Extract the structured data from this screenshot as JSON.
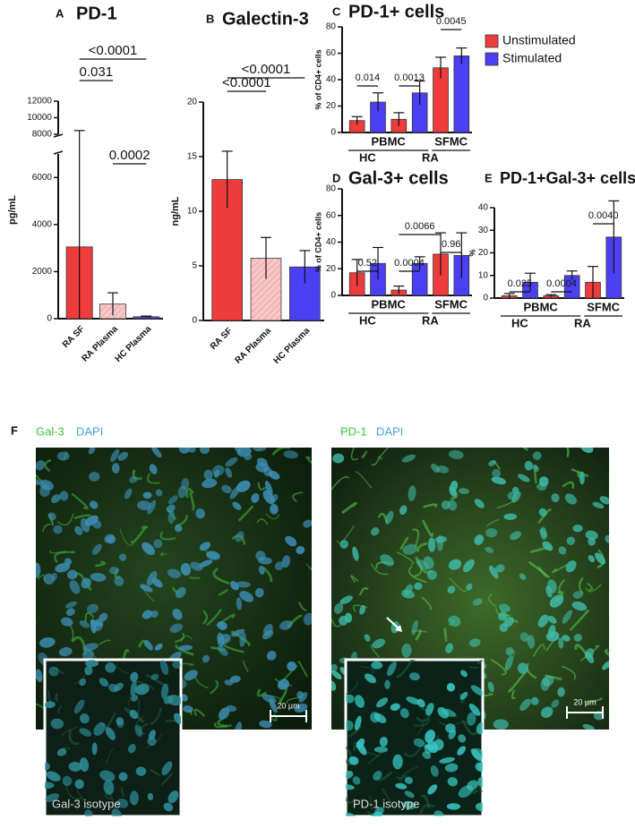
{
  "chart_data": [
    {
      "type": "bar",
      "panel": "A",
      "title": "PD-1",
      "y_label": "pg/mL",
      "categories": [
        "RA SF",
        "RA Plasma",
        "HC Plasma"
      ],
      "values": [
        3050,
        620,
        80
      ],
      "errors": [
        5400,
        480,
        30
      ],
      "colors": [
        "#ee3b3b",
        "#f8c8c8",
        "#4b3ff2"
      ],
      "hatched": [
        false,
        true,
        false
      ],
      "ylim": [
        0,
        12000
      ],
      "axis_break": [
        7000,
        8000
      ],
      "yticks": [
        0,
        2000,
        4000,
        6000,
        8000,
        10000,
        12000
      ],
      "annotations": [
        "<0.0001",
        "0.031",
        "0.0002"
      ],
      "legend": false
    },
    {
      "type": "bar",
      "panel": "B",
      "title": "Galectin-3",
      "y_label": "ng/mL",
      "categories": [
        "RA SF",
        "RA Plasma",
        "HC Plasma"
      ],
      "values": [
        12.9,
        5.7,
        4.9
      ],
      "errors": [
        2.6,
        1.9,
        1.5
      ],
      "colors": [
        "#ee3b3b",
        "#f8c8c8",
        "#4b3ff2"
      ],
      "hatched": [
        false,
        true,
        false
      ],
      "ylim": [
        0,
        20
      ],
      "yticks": [
        0,
        5,
        10,
        15,
        20
      ],
      "annotations": [
        "<0.0001",
        "<0.0001"
      ],
      "legend": false
    },
    {
      "type": "grouped_bar",
      "panel": "C",
      "title": "PD-1+ cells",
      "y_label": "% of CD4+ cells",
      "series": [
        {
          "name": "Unstimulated",
          "color": "#ee3b3b",
          "values": [
            9,
            10,
            49
          ],
          "errors": [
            3,
            5,
            8
          ]
        },
        {
          "name": "Stimulated",
          "color": "#4b3ff2",
          "values": [
            23,
            30,
            58
          ],
          "errors": [
            7,
            9,
            6
          ]
        }
      ],
      "x_labels_sample": [
        "PBMC",
        "SFMC"
      ],
      "x_labels_donor": [
        "HC",
        "RA"
      ],
      "ylim": [
        0,
        80
      ],
      "yticks": [
        0,
        20,
        40,
        60,
        80
      ],
      "annotations": [
        "0.014",
        "0.0013",
        "0.0045"
      ],
      "legend": true
    },
    {
      "type": "grouped_bar",
      "panel": "D",
      "title": "Gal-3+ cells",
      "y_label": "% of CD4+ cells",
      "series": [
        {
          "name": "Unstimulated",
          "color": "#ee3b3b",
          "values": [
            17,
            4,
            31
          ],
          "errors": [
            10,
            3,
            16
          ]
        },
        {
          "name": "Stimulated",
          "color": "#4b3ff2",
          "values": [
            24,
            24,
            30
          ],
          "errors": [
            12,
            5,
            17
          ]
        }
      ],
      "x_labels_sample": [
        "PBMC",
        "SFMC"
      ],
      "x_labels_donor": [
        "HC",
        "RA"
      ],
      "ylim": [
        0,
        80
      ],
      "yticks": [
        0,
        20,
        40,
        60,
        80
      ],
      "annotations": [
        "0.52",
        "0.0004",
        "0.0066",
        "0.96"
      ],
      "legend": false
    },
    {
      "type": "grouped_bar",
      "panel": "E",
      "title": "PD-1+Gal-3+ cells",
      "y_label": "%",
      "series": [
        {
          "name": "Unstimulated",
          "color": "#ee3b3b",
          "values": [
            1,
            1,
            7
          ],
          "errors": [
            1,
            0.5,
            7
          ]
        },
        {
          "name": "Stimulated",
          "color": "#4b3ff2",
          "values": [
            7,
            10,
            27
          ],
          "errors": [
            4,
            2,
            16
          ]
        }
      ],
      "x_labels_sample": [
        "PBMC",
        "SFMC"
      ],
      "x_labels_donor": [
        "HC",
        "RA"
      ],
      "ylim": [
        0,
        40
      ],
      "yticks": [
        0,
        10,
        20,
        30,
        40
      ],
      "annotations": [
        "0.025",
        "0.0004",
        "0.0040"
      ],
      "legend": false
    }
  ],
  "figure_f": {
    "panel": "F",
    "images": [
      {
        "stain": "Gal-3",
        "counterstain": "DAPI",
        "scale_bar": "20 µm",
        "isotype": "Gal-3 isotype"
      },
      {
        "stain": "PD-1",
        "counterstain": "DAPI",
        "scale_bar": "20 µm",
        "isotype": "PD-1 isotype"
      }
    ]
  }
}
